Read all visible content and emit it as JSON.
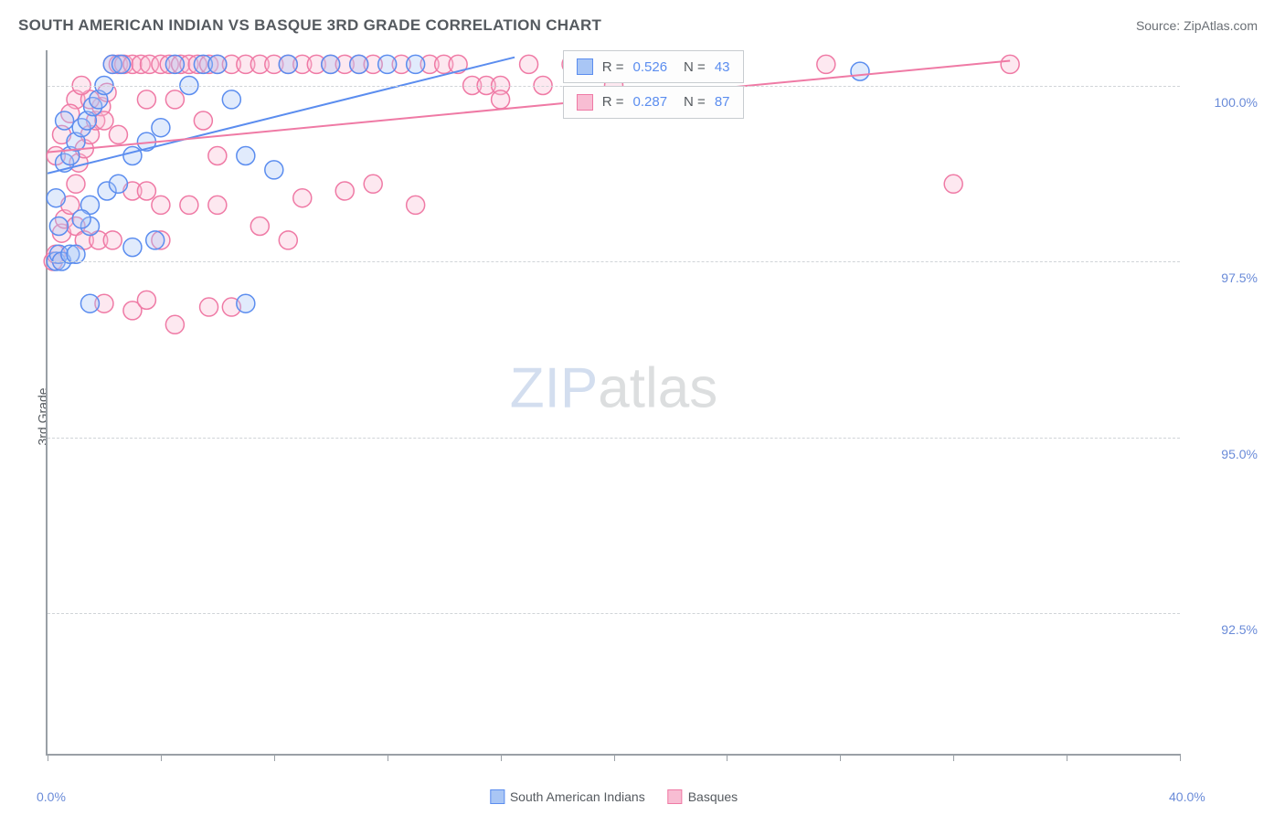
{
  "header": {
    "title": "SOUTH AMERICAN INDIAN VS BASQUE 3RD GRADE CORRELATION CHART",
    "source": "Source: ZipAtlas.com"
  },
  "chart": {
    "type": "scatter",
    "y_axis_title": "3rd Grade",
    "xlim": [
      0,
      40
    ],
    "ylim": [
      90.5,
      100.5
    ],
    "x_ticks": [
      0,
      4,
      8,
      12,
      16,
      20,
      24,
      28,
      32,
      36,
      40
    ],
    "x_tick_labels": {
      "0": "0.0%",
      "40": "40.0%"
    },
    "y_gridlines": [
      92.5,
      95.0,
      97.5,
      100.0
    ],
    "y_tick_labels": [
      "92.5%",
      "95.0%",
      "97.5%",
      "100.0%"
    ],
    "grid_color": "#d0d4d8",
    "axis_color": "#9aa0a6",
    "background_color": "#ffffff",
    "label_color": "#6a8bd8",
    "label_fontsize": 14,
    "marker_radius": 10,
    "marker_fill_opacity": 0.35,
    "marker_stroke_width": 1.5,
    "line_width": 2,
    "series": [
      {
        "name": "South American Indians",
        "color_stroke": "#5b8def",
        "color_fill": "#a9c6f5",
        "trend": {
          "x1": 0,
          "y1": 98.75,
          "x2": 16.5,
          "y2": 100.4
        },
        "stats": {
          "R": "0.526",
          "N": "43"
        },
        "points": [
          [
            0.3,
            97.5
          ],
          [
            0.4,
            97.6
          ],
          [
            0.5,
            97.5
          ],
          [
            0.4,
            98.0
          ],
          [
            0.3,
            98.4
          ],
          [
            0.6,
            98.9
          ],
          [
            0.8,
            99.0
          ],
          [
            1.0,
            99.2
          ],
          [
            1.2,
            99.4
          ],
          [
            1.4,
            99.5
          ],
          [
            1.6,
            99.7
          ],
          [
            1.8,
            99.8
          ],
          [
            2.0,
            100.0
          ],
          [
            2.3,
            100.3
          ],
          [
            2.6,
            100.3
          ],
          [
            0.8,
            97.6
          ],
          [
            1.0,
            97.6
          ],
          [
            1.5,
            98.0
          ],
          [
            1.5,
            98.3
          ],
          [
            2.1,
            98.5
          ],
          [
            2.5,
            98.6
          ],
          [
            3.0,
            99.0
          ],
          [
            3.5,
            99.2
          ],
          [
            4.0,
            99.4
          ],
          [
            4.5,
            100.3
          ],
          [
            5.0,
            100.0
          ],
          [
            5.5,
            100.3
          ],
          [
            6.0,
            100.3
          ],
          [
            7.0,
            99.0
          ],
          [
            8.0,
            98.8
          ],
          [
            8.5,
            100.3
          ],
          [
            10.0,
            100.3
          ],
          [
            11.0,
            100.3
          ],
          [
            6.5,
            99.8
          ],
          [
            7.0,
            96.9
          ],
          [
            1.5,
            96.9
          ],
          [
            3.0,
            97.7
          ],
          [
            3.8,
            97.8
          ],
          [
            12.0,
            100.3
          ],
          [
            13.0,
            100.3
          ],
          [
            28.7,
            100.2
          ],
          [
            1.2,
            98.1
          ],
          [
            0.6,
            99.5
          ]
        ]
      },
      {
        "name": "Basques",
        "color_stroke": "#ef7aa5",
        "color_fill": "#f8bdd3",
        "trend": {
          "x1": 0,
          "y1": 99.05,
          "x2": 34,
          "y2": 100.35
        },
        "stats": {
          "R": "0.287",
          "N": "87"
        },
        "points": [
          [
            0.2,
            97.5
          ],
          [
            0.3,
            97.6
          ],
          [
            0.5,
            97.9
          ],
          [
            0.6,
            98.1
          ],
          [
            0.8,
            98.3
          ],
          [
            1.0,
            98.6
          ],
          [
            1.1,
            98.9
          ],
          [
            1.3,
            99.1
          ],
          [
            1.5,
            99.3
          ],
          [
            1.7,
            99.5
          ],
          [
            1.9,
            99.7
          ],
          [
            2.1,
            99.9
          ],
          [
            2.3,
            100.3
          ],
          [
            2.5,
            100.3
          ],
          [
            2.7,
            100.3
          ],
          [
            3.0,
            100.3
          ],
          [
            3.3,
            100.3
          ],
          [
            3.6,
            100.3
          ],
          [
            4.0,
            100.3
          ],
          [
            4.3,
            100.3
          ],
          [
            4.7,
            100.3
          ],
          [
            5.0,
            100.3
          ],
          [
            5.3,
            100.3
          ],
          [
            5.7,
            100.3
          ],
          [
            6.0,
            100.3
          ],
          [
            6.5,
            100.3
          ],
          [
            7.0,
            100.3
          ],
          [
            7.5,
            100.3
          ],
          [
            8.0,
            100.3
          ],
          [
            8.5,
            100.3
          ],
          [
            9.0,
            100.3
          ],
          [
            9.5,
            100.3
          ],
          [
            10.0,
            100.3
          ],
          [
            10.5,
            100.3
          ],
          [
            11.0,
            100.3
          ],
          [
            11.5,
            100.3
          ],
          [
            12.5,
            100.3
          ],
          [
            13.5,
            100.3
          ],
          [
            14.0,
            100.3
          ],
          [
            14.5,
            100.3
          ],
          [
            15.0,
            100.0
          ],
          [
            15.5,
            100.0
          ],
          [
            16.0,
            100.0
          ],
          [
            17.0,
            100.3
          ],
          [
            17.5,
            100.0
          ],
          [
            18.5,
            100.3
          ],
          [
            19.5,
            100.3
          ],
          [
            20.0,
            100.0
          ],
          [
            21.0,
            100.3
          ],
          [
            27.5,
            100.3
          ],
          [
            34.0,
            100.3
          ],
          [
            32.0,
            98.6
          ],
          [
            1.0,
            99.8
          ],
          [
            1.5,
            99.8
          ],
          [
            2.0,
            99.5
          ],
          [
            2.5,
            99.3
          ],
          [
            3.0,
            98.5
          ],
          [
            3.5,
            98.5
          ],
          [
            4.0,
            98.3
          ],
          [
            5.0,
            98.3
          ],
          [
            6.0,
            98.3
          ],
          [
            7.5,
            98.0
          ],
          [
            8.5,
            97.8
          ],
          [
            9.0,
            98.4
          ],
          [
            10.5,
            98.5
          ],
          [
            11.5,
            98.6
          ],
          [
            13.0,
            98.3
          ],
          [
            16.0,
            99.8
          ],
          [
            0.3,
            99.0
          ],
          [
            0.5,
            99.3
          ],
          [
            0.8,
            99.6
          ],
          [
            1.2,
            100.0
          ],
          [
            1.0,
            98.0
          ],
          [
            1.3,
            97.8
          ],
          [
            1.8,
            97.8
          ],
          [
            2.3,
            97.8
          ],
          [
            2.0,
            96.9
          ],
          [
            3.0,
            96.8
          ],
          [
            3.5,
            96.95
          ],
          [
            4.5,
            96.6
          ],
          [
            5.7,
            96.85
          ],
          [
            6.5,
            96.85
          ],
          [
            3.5,
            99.8
          ],
          [
            4.5,
            99.8
          ],
          [
            5.5,
            99.5
          ],
          [
            6.0,
            99.0
          ],
          [
            4.0,
            97.8
          ]
        ]
      }
    ],
    "stats_box": {
      "left_pct": 45.5,
      "top1_pct": 0,
      "top2_pct": 5.0
    },
    "watermark": {
      "zip": "ZIP",
      "atlas": "atlas"
    }
  },
  "legend": {
    "items": [
      {
        "label": "South American Indians",
        "fill": "#a9c6f5",
        "stroke": "#5b8def"
      },
      {
        "label": "Basques",
        "fill": "#f8bdd3",
        "stroke": "#ef7aa5"
      }
    ]
  }
}
